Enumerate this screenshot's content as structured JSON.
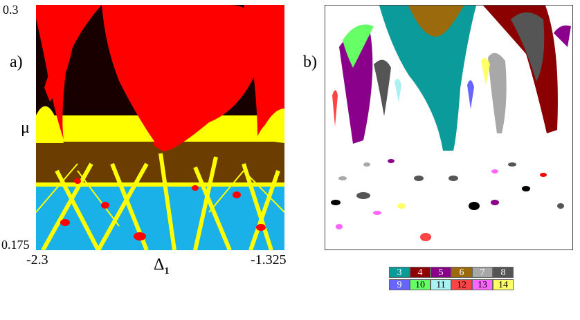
{
  "panel_a": {
    "label": "a)",
    "y_top": "0.3",
    "y_bottom": "0.175",
    "y_axis_label": "μ",
    "x_left": "-2.3",
    "x_right": "-1.325",
    "x_axis_label": "Δ",
    "x_axis_subscript": "1"
  },
  "panel_b": {
    "label": "b)"
  },
  "colors": {
    "red": "#ff0000",
    "yellow": "#ffff00",
    "blue": "#1ab0e8",
    "black": "#000000"
  },
  "legend": {
    "rows": [
      [
        {
          "label": "3",
          "color": "#0a9b9a",
          "text_color": "#ffffff"
        },
        {
          "label": "4",
          "color": "#8b0000",
          "text_color": "#ffffff"
        },
        {
          "label": "5",
          "color": "#8b008b",
          "text_color": "#ffffff"
        },
        {
          "label": "6",
          "color": "#9a6a0c",
          "text_color": "#ffffff"
        },
        {
          "label": "7",
          "color": "#a8a8a8",
          "text_color": "#ffffff"
        },
        {
          "label": "8",
          "color": "#555555",
          "text_color": "#ffffff"
        }
      ],
      [
        {
          "label": "9",
          "color": "#6666ff",
          "text_color": "#ffffff"
        },
        {
          "label": "10",
          "color": "#66ff66",
          "text_color": "#000000"
        },
        {
          "label": "11",
          "color": "#aaf2f2",
          "text_color": "#000000"
        },
        {
          "label": "12",
          "color": "#ff4444",
          "text_color": "#000000"
        },
        {
          "label": "13",
          "color": "#ff66ff",
          "text_color": "#000000"
        },
        {
          "label": "14",
          "color": "#ffff66",
          "text_color": "#000000"
        }
      ]
    ]
  }
}
